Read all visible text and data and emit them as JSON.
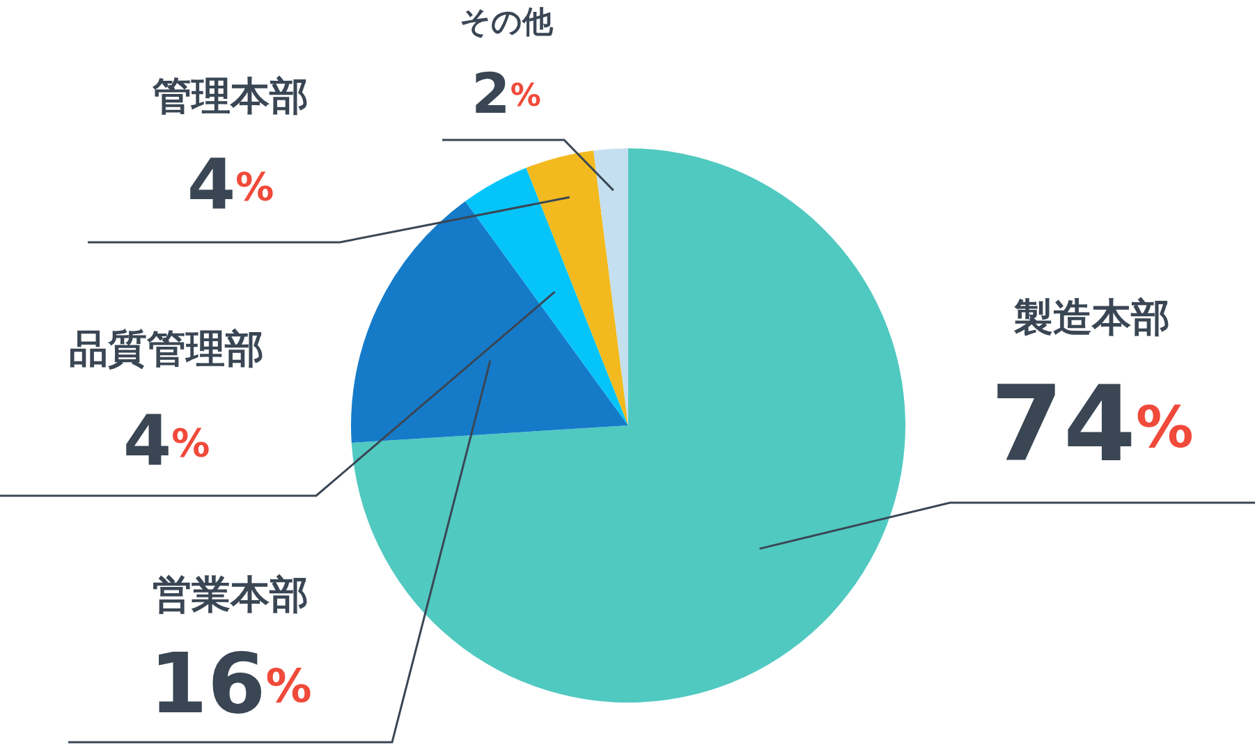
{
  "chart_data": {
    "type": "pie",
    "categories": [
      "製造本部",
      "営業本部",
      "品質管理部",
      "管理本部",
      "その他"
    ],
    "values": [
      74,
      16,
      4,
      4,
      2
    ],
    "colors": [
      "#50c9c1",
      "#157bc9",
      "#05c4fa",
      "#f2ba1e",
      "#c4dff0"
    ],
    "value_labels": [
      "74%",
      "16%",
      "4%",
      "4%",
      "2%"
    ]
  }
}
